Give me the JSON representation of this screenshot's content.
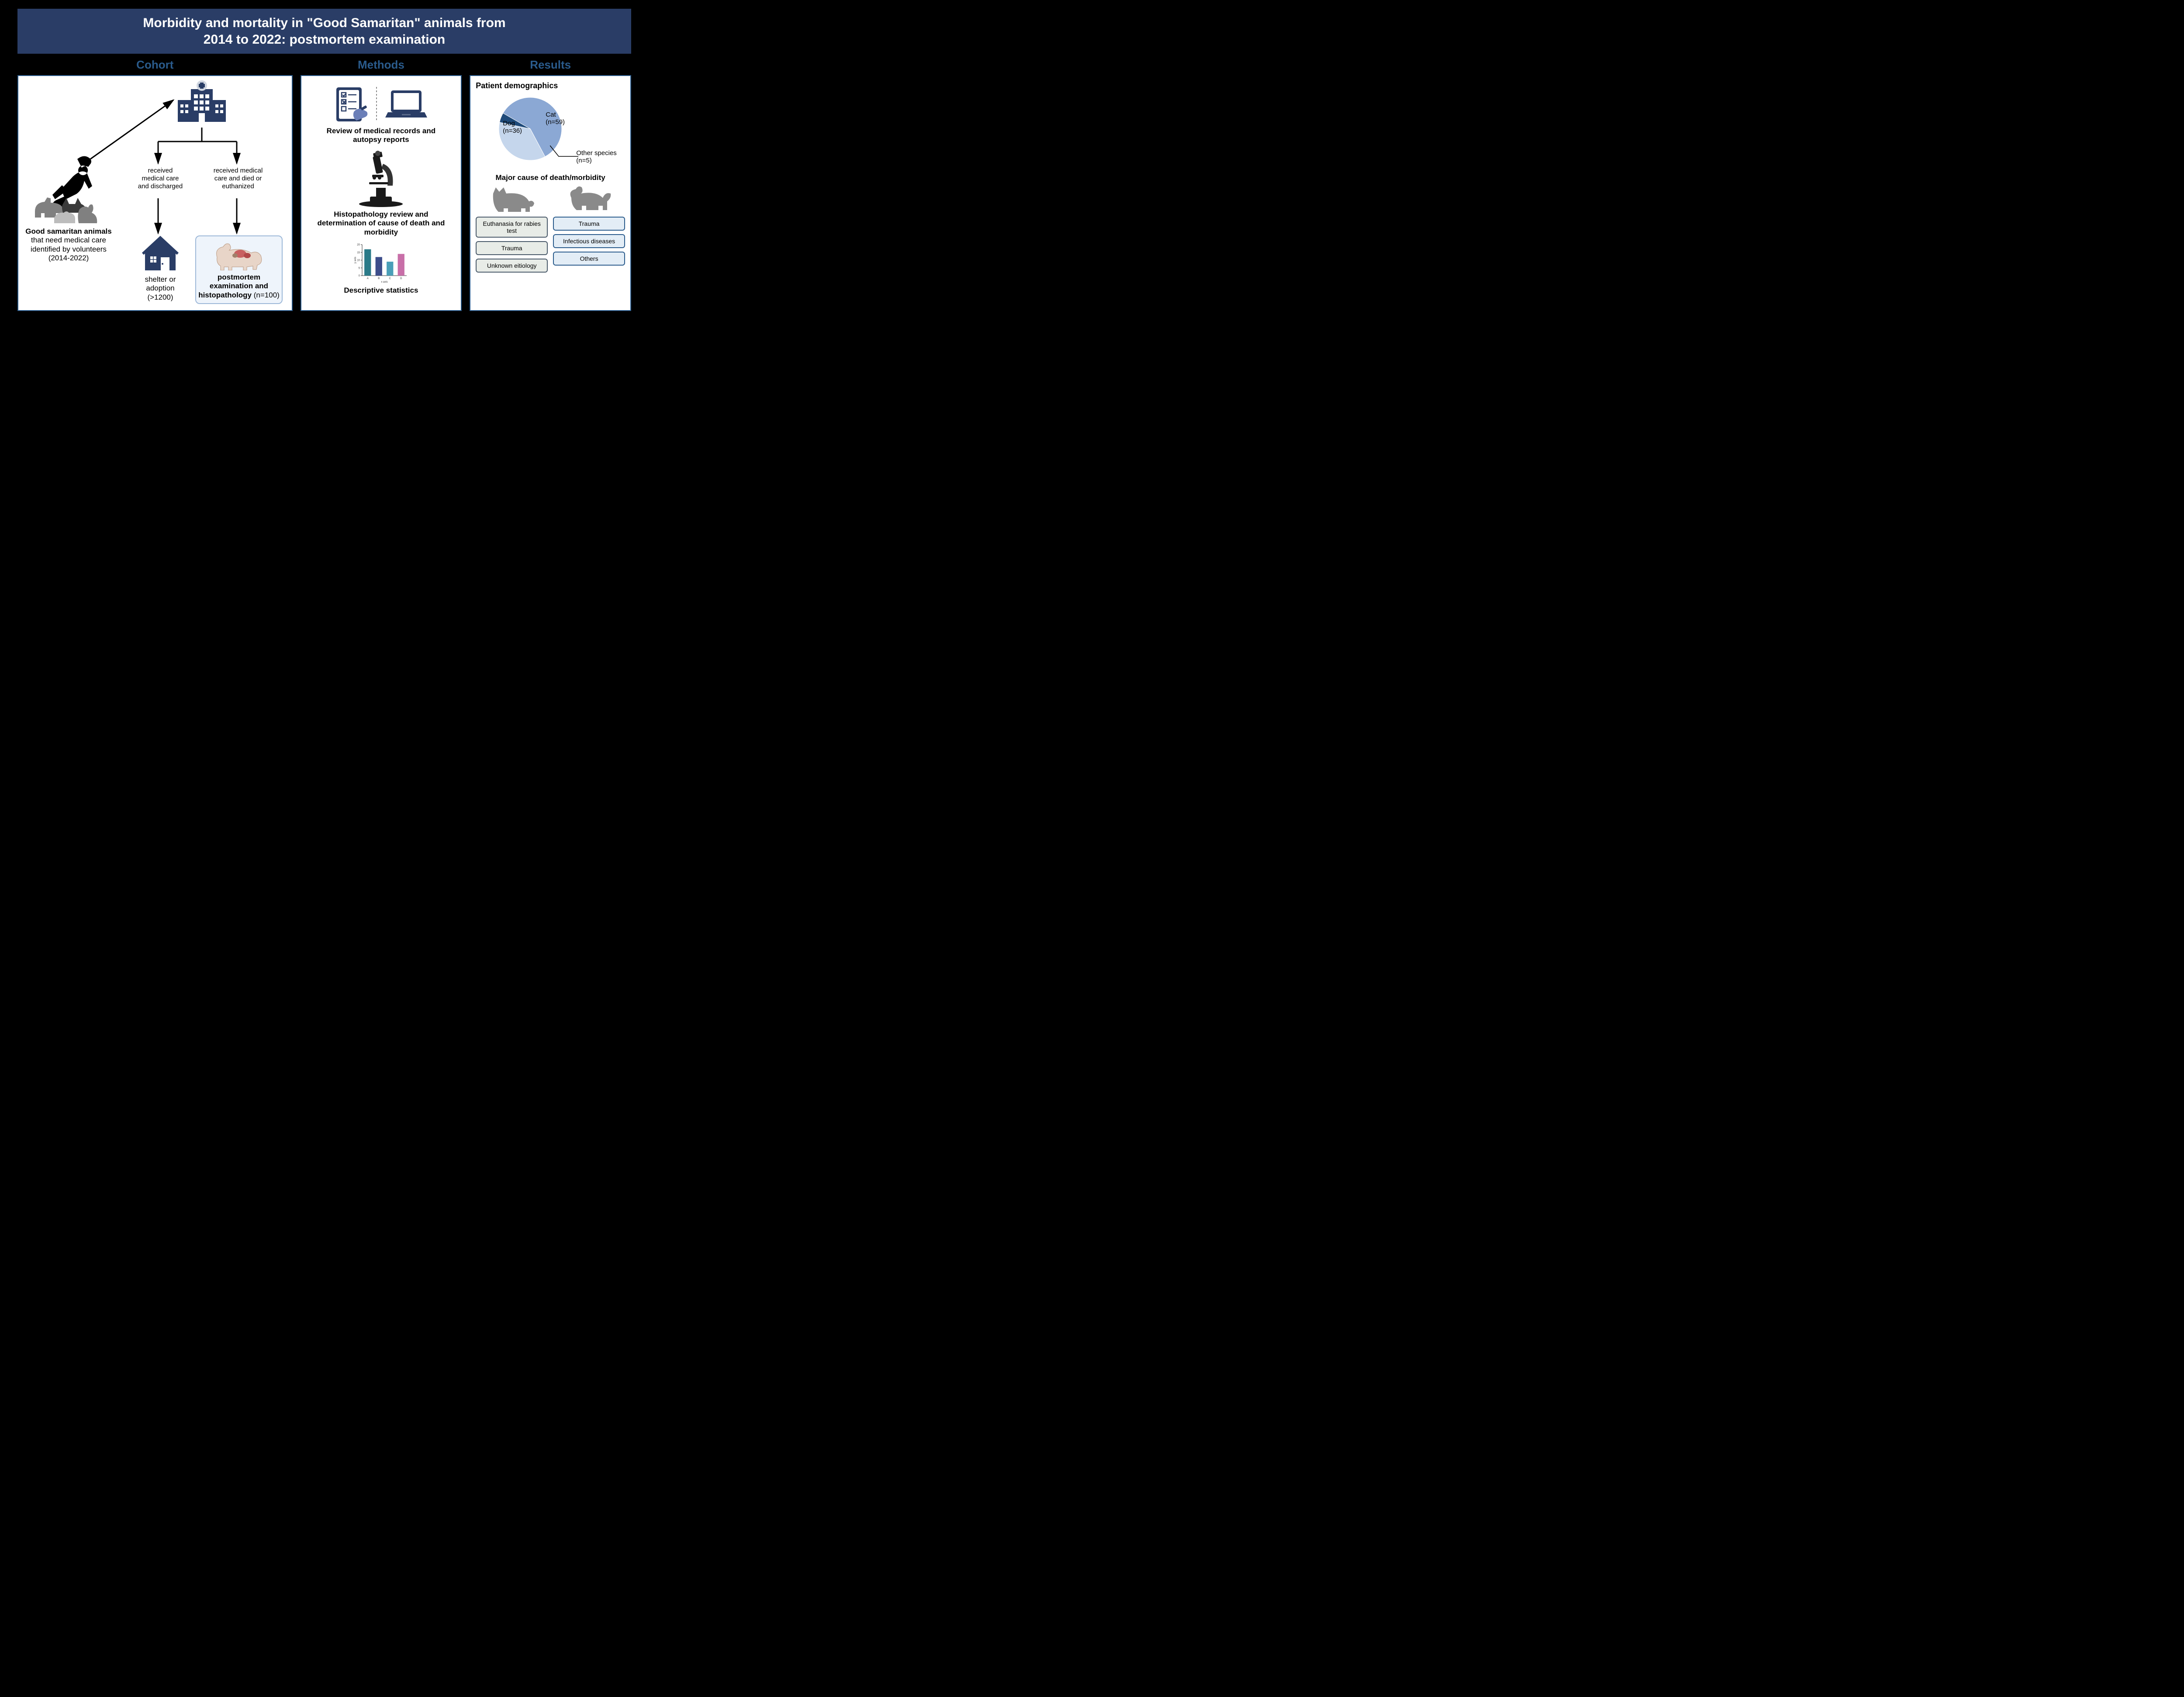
{
  "title": {
    "line1": "Morbidity and mortality in \"Good Samaritan\" animals from",
    "line2": "2014 to 2022: postmortem examination",
    "background_color": "#2a3d66",
    "text_color": "#ffffff",
    "fontsize": 30
  },
  "section_headers": {
    "cohort": "Cohort",
    "methods": "Methods",
    "results": "Results",
    "color": "#2a5b8c",
    "fontsize": 26
  },
  "cohort": {
    "volunteer_title": "Good samaritan animals",
    "volunteer_desc": "that need medical care identified by volunteers (2014-2022)",
    "hospital_icon_color": "#2a3d66",
    "branch1_line1": "received",
    "branch1_line2": "medical care",
    "branch1_line3": "and discharged",
    "branch2_line1": "received medical",
    "branch2_line2": "care and died or",
    "branch2_line3": "euthanized",
    "shelter_line1": "shelter or",
    "shelter_line2": "adoption",
    "shelter_count": "(>1200)",
    "pm_line1": "postmortem",
    "pm_line2": "examination and",
    "pm_line3_prefix": "histopathology",
    "pm_count": " (n=100)",
    "icon_colors": {
      "house": "#2a3d66",
      "volunteer": "#000000",
      "animals_gray": "#808080",
      "animals_light": "#bcbcbc"
    }
  },
  "methods": {
    "step1": "Review of medical records and autopsy reports",
    "step2": "Histopathology review and determination of cause of death and morbidity",
    "step3": "Descriptive statistics",
    "icon_colors": {
      "clipboard": "#2a3d66",
      "hand": "#6b7fb8",
      "laptop": "#2a3d66",
      "microscope": "#1a1a1a"
    },
    "mini_chart": {
      "type": "bar",
      "categories": [
        "A",
        "B",
        "C",
        "D"
      ],
      "values": [
        17,
        12,
        9,
        14
      ],
      "bar_colors": [
        "#2a7a88",
        "#3d4d8a",
        "#4a9fb8",
        "#c86fa8"
      ],
      "ylim": [
        0,
        20
      ],
      "ytick_step": 5,
      "yaxis_label": "y axis",
      "xaxis_label": "x axis",
      "axis_fontsize": 6
    }
  },
  "results": {
    "demo_title": "Patient demographics",
    "pie": {
      "type": "pie",
      "slices": [
        {
          "label": "Cat",
          "n": 59,
          "display": "Cat\n(n=59)",
          "color": "#8ba8d4",
          "start_angle": -60,
          "end_angle": 152
        },
        {
          "label": "Dog",
          "n": 36,
          "display": "Dog\n(n=36)",
          "color": "#c5d6ec",
          "start_angle": 152,
          "end_angle": 282
        },
        {
          "label": "Other species",
          "n": 5,
          "display": "Other species (n=5)",
          "color": "#1e4a7a",
          "start_angle": 282,
          "end_angle": 300
        }
      ],
      "radius": 72
    },
    "cause_title": "Major cause of death/morbidity",
    "cat_causes": [
      "Euthanasia for rabies test",
      "Trauma",
      "Unknown eitiology"
    ],
    "dog_causes": [
      "Trauma",
      "Infectious diseases",
      "Others"
    ],
    "cat_box_color": "#e8ece7",
    "dog_box_color": "#e3edf6",
    "silhouette_color": "#8a8a8a"
  },
  "layout": {
    "background": "#000000",
    "panel_border": "#2a5b8c",
    "panel_bg": "#ffffff"
  }
}
